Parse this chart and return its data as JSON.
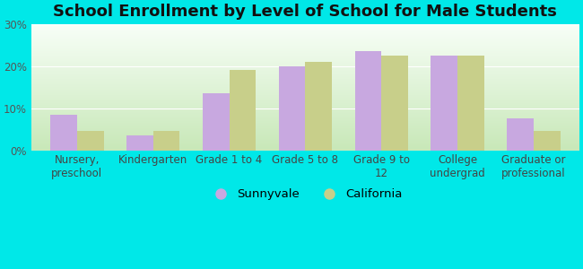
{
  "title": "School Enrollment by Level of School for Male Students",
  "categories": [
    "Nursery,\npreschool",
    "Kindergarten",
    "Grade 1 to 4",
    "Grade 5 to 8",
    "Grade 9 to\n12",
    "College\nundergrad",
    "Graduate or\nprofessional"
  ],
  "sunnyvale": [
    8.5,
    3.5,
    13.5,
    20.0,
    23.5,
    22.5,
    7.5
  ],
  "california": [
    4.5,
    4.5,
    19.0,
    21.0,
    22.5,
    22.5,
    4.5
  ],
  "sunnyvale_color": "#c8a8e0",
  "california_color": "#c8cf8a",
  "background_color": "#00e8e8",
  "grad_top": "#f8fff8",
  "grad_bottom": "#c8e8b8",
  "bar_width": 0.35,
  "ylim": [
    0,
    30
  ],
  "yticks": [
    0,
    10,
    20,
    30
  ],
  "legend_labels": [
    "Sunnyvale",
    "California"
  ],
  "title_fontsize": 13,
  "tick_fontsize": 8.5,
  "figsize": [
    6.5,
    3.0
  ],
  "dpi": 100
}
